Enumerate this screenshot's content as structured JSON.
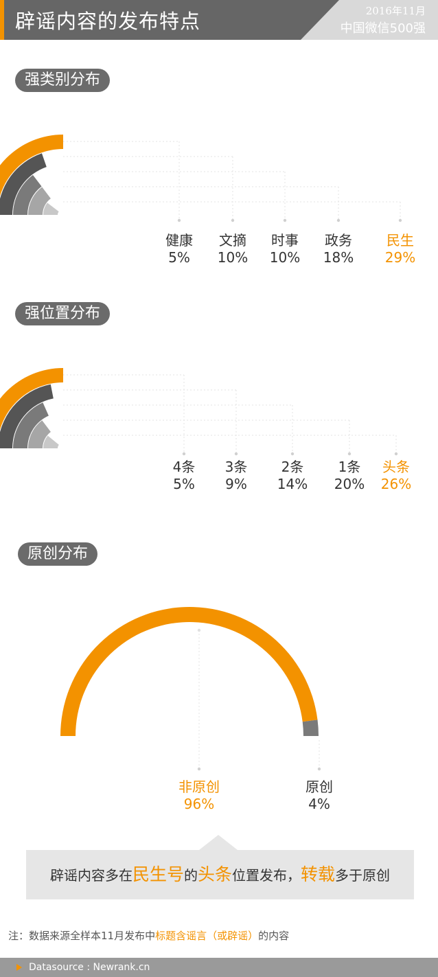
{
  "header": {
    "title": "辟谣内容的发布特点",
    "date": "2016年11月",
    "sample": "中国微信500强"
  },
  "sections": {
    "category": "强类别分布",
    "position": "强位置分布",
    "original": "原创分布"
  },
  "colors": {
    "accent": "#f39200",
    "dark": "#555555",
    "mid": "#7a7a7a",
    "light": "#a6a6a6",
    "lighter": "#c8c8c8"
  },
  "chart_data": [
    {
      "type": "bar",
      "categories": [
        "健康",
        "文摘",
        "时事",
        "政务",
        "民生"
      ],
      "values": [
        5,
        10,
        10,
        18,
        29
      ],
      "value_labels": [
        "5%",
        "10%",
        "10%",
        "18%",
        "29%"
      ],
      "unit": "%",
      "highlight": "民生"
    },
    {
      "type": "bar",
      "categories": [
        "4条",
        "3条",
        "2条",
        "1条",
        "头条"
      ],
      "values": [
        5,
        9,
        14,
        20,
        26
      ],
      "value_labels": [
        "5%",
        "9%",
        "14%",
        "20%",
        "26%"
      ],
      "unit": "%",
      "highlight": "头条"
    },
    {
      "type": "pie",
      "categories": [
        "非原创",
        "原创"
      ],
      "values": [
        96,
        4
      ],
      "value_labels": [
        "96%",
        "4%"
      ],
      "unit": "%",
      "highlight": "非原创"
    }
  ],
  "summary": {
    "p1": "辟谣内容多在",
    "h1": "民生号",
    "p2": "的",
    "h2": "头条",
    "p3": "位置发布，",
    "h3": "转载",
    "p4": "多于原创"
  },
  "note": {
    "prefix": "注：数据来源全样本11月发布中",
    "highlight": "标题含谣言（或辟谣）",
    "suffix": "的内容"
  },
  "footer": {
    "source": "Datasource : Newrank.cn"
  }
}
